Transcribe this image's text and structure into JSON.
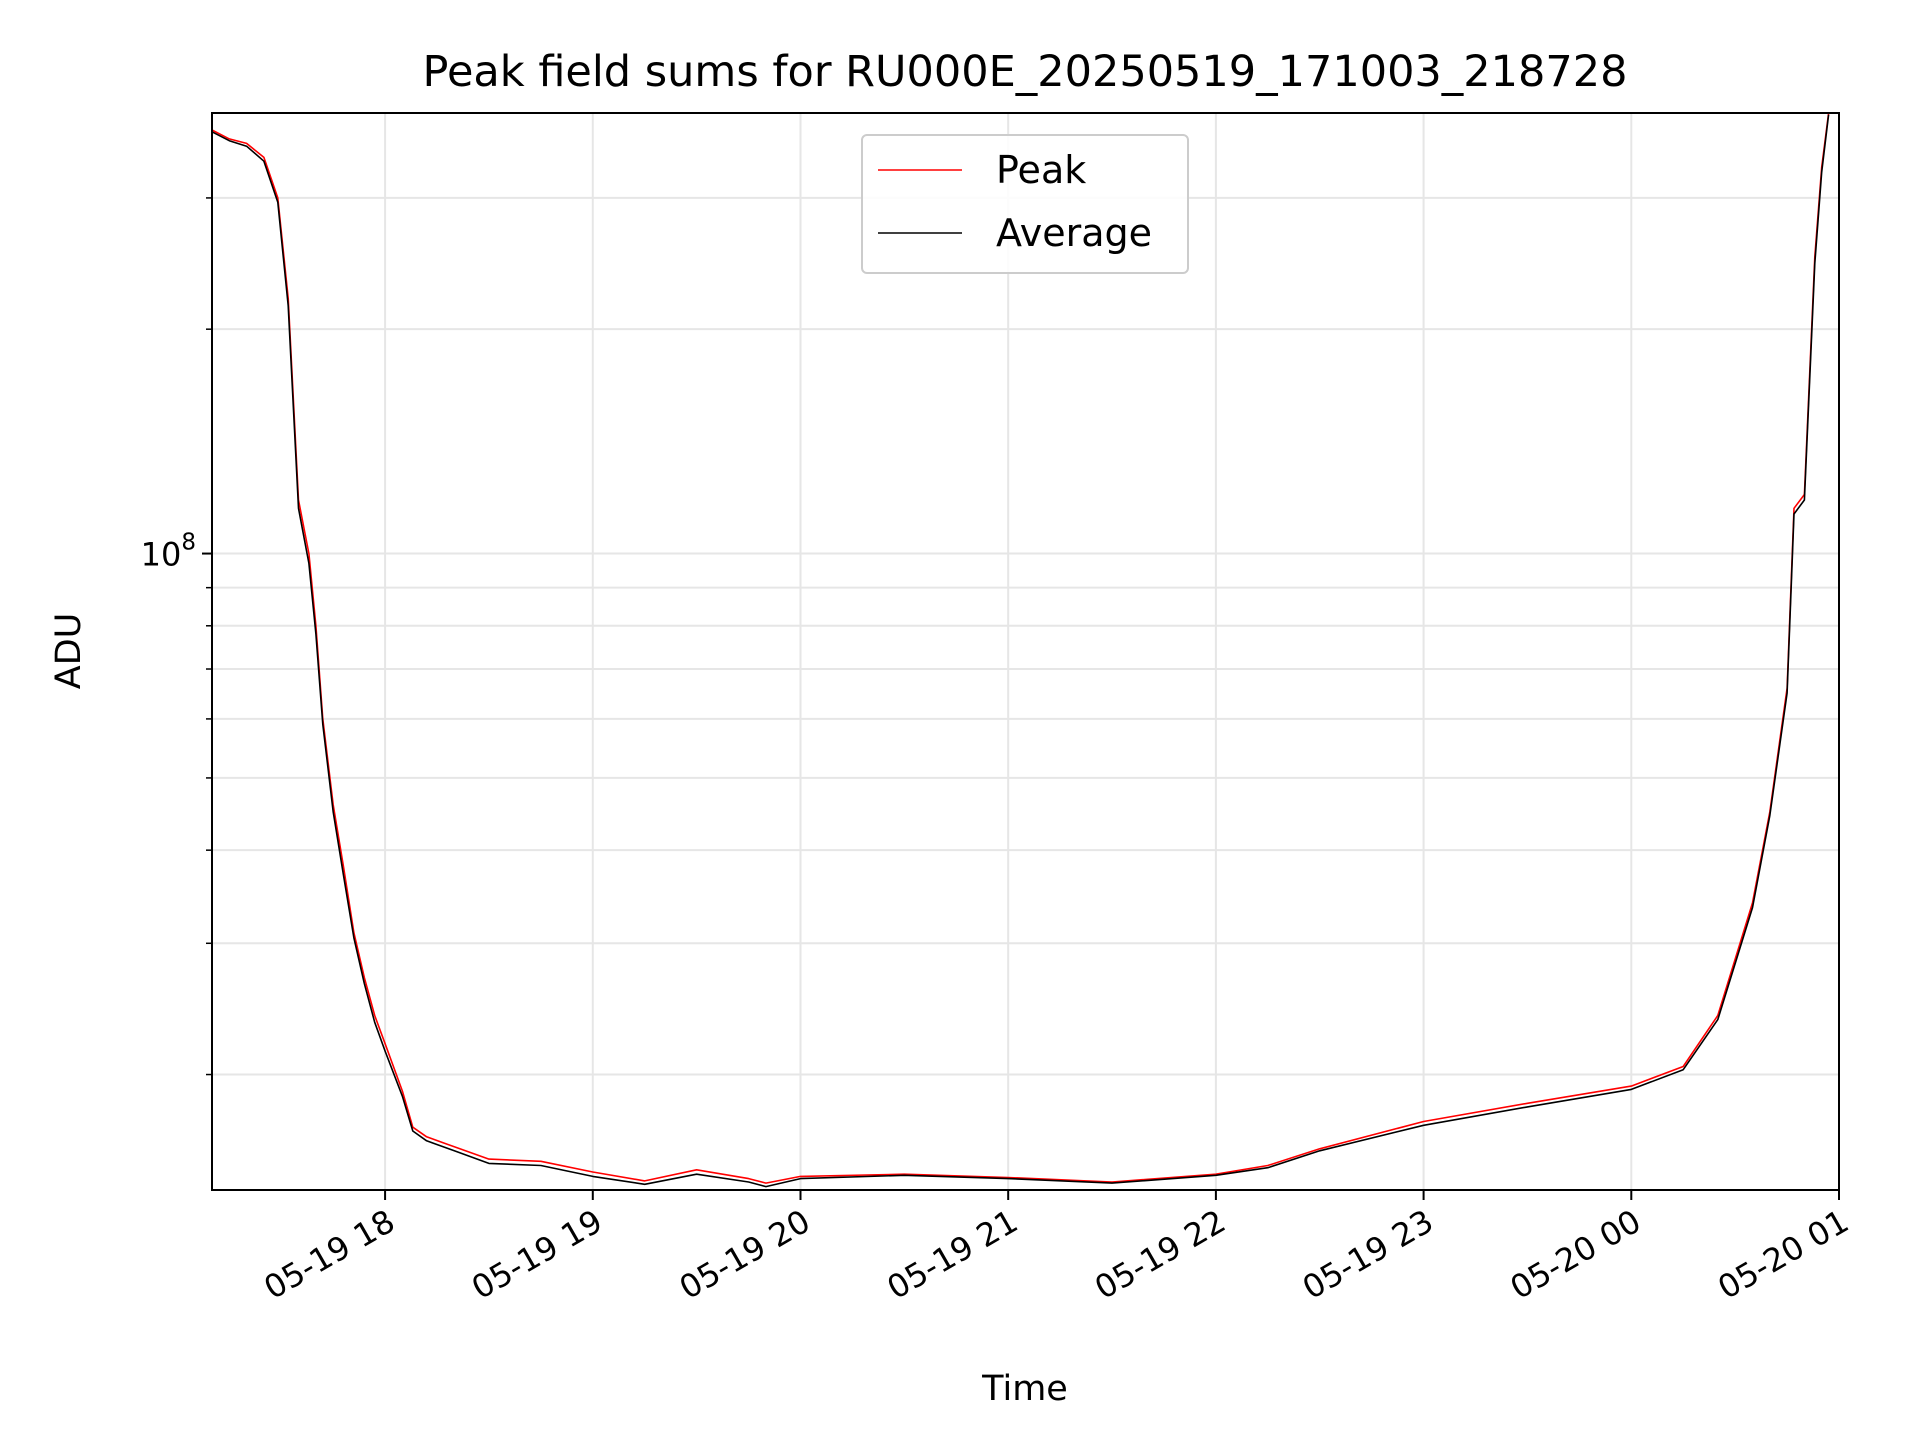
{
  "chart_data": {
    "type": "line",
    "title": "Peak field sums for RU000E_20250519_171003_218728",
    "xlabel": "Time",
    "ylabel": "ADU",
    "y_scale": "log",
    "ylim": [
      14000000,
      390000000
    ],
    "xlim": [
      "2025-05-19 17:10",
      "2025-05-20 01:00"
    ],
    "grid": true,
    "legend_position": "upper-center",
    "x_ticks": [
      {
        "value": "2025-05-19 18:00",
        "label": "05-19 18"
      },
      {
        "value": "2025-05-19 19:00",
        "label": "05-19 19"
      },
      {
        "value": "2025-05-19 20:00",
        "label": "05-19 20"
      },
      {
        "value": "2025-05-19 21:00",
        "label": "05-19 21"
      },
      {
        "value": "2025-05-19 22:00",
        "label": "05-19 22"
      },
      {
        "value": "2025-05-19 23:00",
        "label": "05-19 23"
      },
      {
        "value": "2025-05-20 00:00",
        "label": "05-20 00"
      },
      {
        "value": "2025-05-20 01:00",
        "label": "05-20 01"
      }
    ],
    "y_major_ticks": [
      {
        "value": 100000000,
        "base": "10",
        "exp": "8"
      }
    ],
    "y_minor_ticks": [
      20000000,
      30000000,
      40000000,
      50000000,
      60000000,
      70000000,
      80000000,
      90000000,
      200000000,
      300000000
    ],
    "series": [
      {
        "name": "Peak",
        "color": "#ff0000",
        "x": [
          "2025-05-19 17:10",
          "2025-05-19 17:15",
          "2025-05-19 17:20",
          "2025-05-19 17:25",
          "2025-05-19 17:29",
          "2025-05-19 17:32",
          "2025-05-19 17:35",
          "2025-05-19 17:38",
          "2025-05-19 17:40",
          "2025-05-19 17:42",
          "2025-05-19 17:45",
          "2025-05-19 17:48",
          "2025-05-19 17:51",
          "2025-05-19 17:54",
          "2025-05-19 17:57",
          "2025-05-19 18:00",
          "2025-05-19 18:05",
          "2025-05-19 18:08",
          "2025-05-19 18:12",
          "2025-05-19 18:20",
          "2025-05-19 18:30",
          "2025-05-19 18:45",
          "2025-05-19 19:00",
          "2025-05-19 19:15",
          "2025-05-19 19:30",
          "2025-05-19 19:45",
          "2025-05-19 19:50",
          "2025-05-19 20:00",
          "2025-05-19 20:30",
          "2025-05-19 21:00",
          "2025-05-19 21:30",
          "2025-05-19 22:00",
          "2025-05-19 22:15",
          "2025-05-19 22:30",
          "2025-05-19 23:00",
          "2025-05-19 23:30",
          "2025-05-20 00:00",
          "2025-05-20 00:15",
          "2025-05-20 00:25",
          "2025-05-20 00:35",
          "2025-05-20 00:40",
          "2025-05-20 00:45",
          "2025-05-20 00:47",
          "2025-05-20 00:50",
          "2025-05-20 00:53",
          "2025-05-20 00:55",
          "2025-05-20 00:57"
        ],
        "values": [
          370000000,
          360000000,
          355000000,
          340000000,
          300000000,
          220000000,
          118000000,
          100000000,
          80000000,
          60000000,
          46000000,
          38000000,
          31000000,
          27000000,
          24000000,
          22000000,
          19000000,
          17000000,
          16500000,
          16000000,
          15400000,
          15300000,
          14800000,
          14400000,
          14900000,
          14500000,
          14300000,
          14600000,
          14700000,
          14550000,
          14350000,
          14700000,
          15100000,
          15900000,
          17300000,
          18300000,
          19300000,
          20500000,
          24000000,
          34000000,
          45000000,
          66000000,
          115000000,
          120000000,
          250000000,
          330000000,
          390000000
        ]
      },
      {
        "name": "Average",
        "color": "#000000",
        "x": [
          "2025-05-19 17:10",
          "2025-05-19 17:15",
          "2025-05-19 17:20",
          "2025-05-19 17:25",
          "2025-05-19 17:29",
          "2025-05-19 17:32",
          "2025-05-19 17:35",
          "2025-05-19 17:38",
          "2025-05-19 17:40",
          "2025-05-19 17:42",
          "2025-05-19 17:45",
          "2025-05-19 17:48",
          "2025-05-19 17:51",
          "2025-05-19 17:54",
          "2025-05-19 17:57",
          "2025-05-19 18:00",
          "2025-05-19 18:05",
          "2025-05-19 18:08",
          "2025-05-19 18:12",
          "2025-05-19 18:20",
          "2025-05-19 18:30",
          "2025-05-19 18:45",
          "2025-05-19 19:00",
          "2025-05-19 19:15",
          "2025-05-19 19:30",
          "2025-05-19 19:45",
          "2025-05-19 19:50",
          "2025-05-19 20:00",
          "2025-05-19 20:30",
          "2025-05-19 21:00",
          "2025-05-19 21:30",
          "2025-05-19 22:00",
          "2025-05-19 22:15",
          "2025-05-19 22:30",
          "2025-05-19 23:00",
          "2025-05-19 23:30",
          "2025-05-20 00:00",
          "2025-05-20 00:15",
          "2025-05-20 00:25",
          "2025-05-20 00:35",
          "2025-05-20 00:40",
          "2025-05-20 00:45",
          "2025-05-20 00:47",
          "2025-05-20 00:50",
          "2025-05-20 00:53",
          "2025-05-20 00:55",
          "2025-05-20 00:57"
        ],
        "values": [
          368000000,
          358000000,
          352000000,
          336000000,
          296000000,
          215000000,
          115000000,
          97000000,
          78000000,
          59000000,
          45000000,
          37000000,
          30500000,
          26500000,
          23500000,
          21500000,
          18700000,
          16800000,
          16300000,
          15800000,
          15200000,
          15100000,
          14600000,
          14250000,
          14700000,
          14350000,
          14150000,
          14500000,
          14650000,
          14500000,
          14300000,
          14650000,
          15000000,
          15800000,
          17100000,
          18100000,
          19100000,
          20300000,
          23700000,
          33500000,
          44500000,
          65000000,
          113000000,
          118000000,
          245000000,
          325000000,
          388000000
        ]
      }
    ]
  }
}
